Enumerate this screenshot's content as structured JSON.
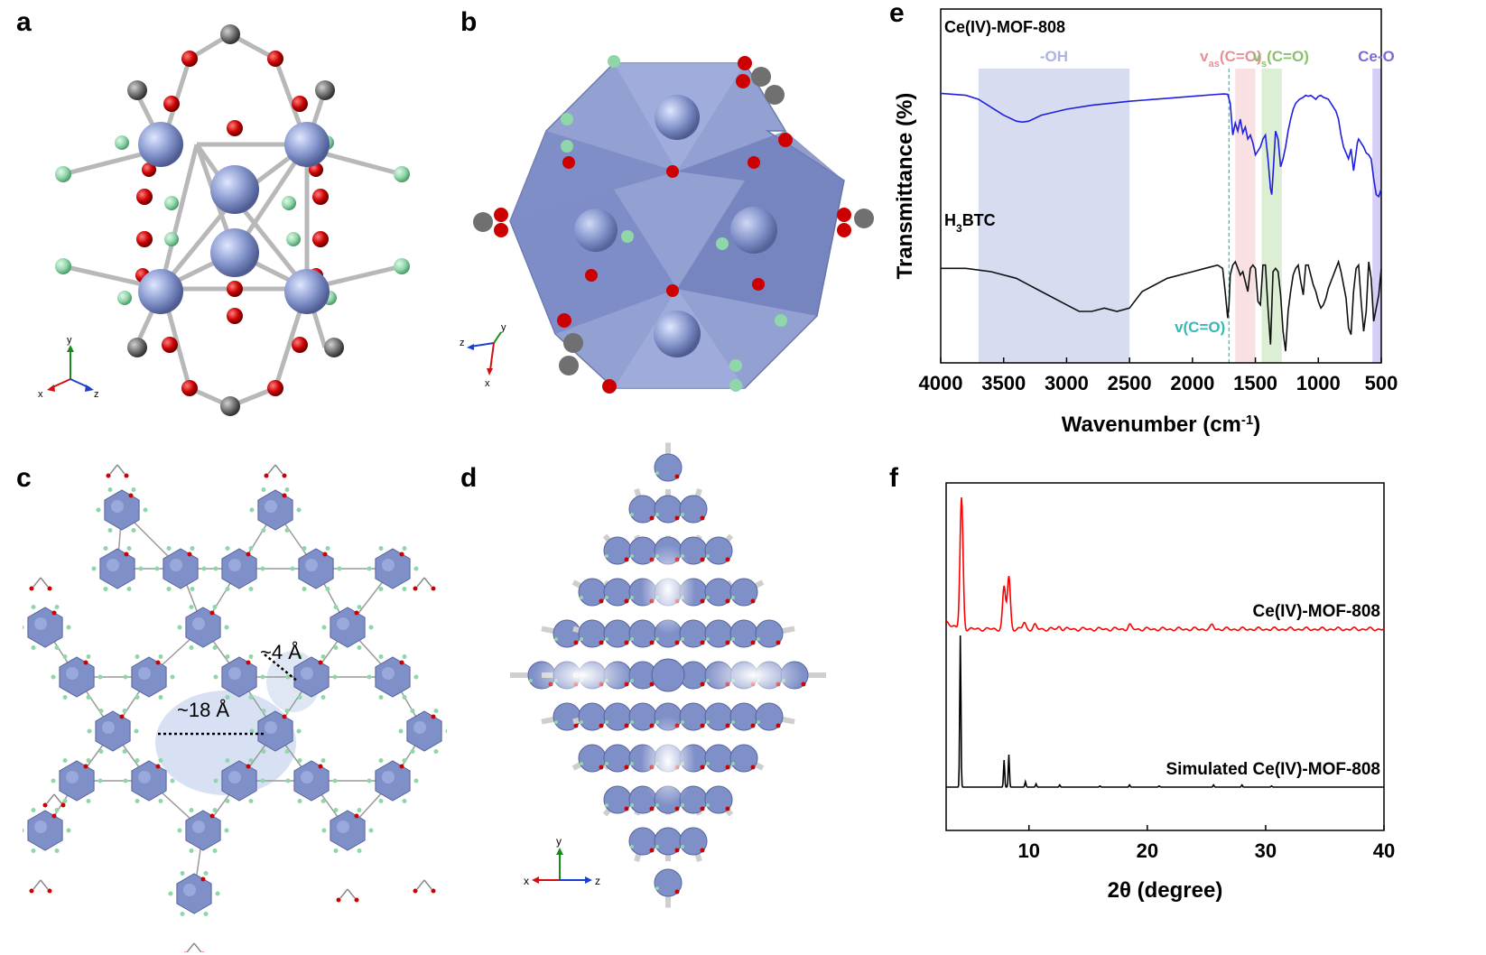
{
  "panels": {
    "a": {
      "label": "a",
      "axes": {
        "y": "y",
        "x": "x",
        "z": "z"
      }
    },
    "b": {
      "label": "b",
      "axes": {
        "y": "y",
        "z": "z",
        "x": "x"
      }
    },
    "c": {
      "label": "c",
      "pore_label": "~18 Å",
      "window_label": "~4 Å"
    },
    "d": {
      "label": "d",
      "axes": {
        "y": "y",
        "x": "x",
        "z": "z"
      }
    },
    "e": {
      "label": "e"
    },
    "f": {
      "label": "f"
    }
  },
  "atom_colors": {
    "Ce": "#8a9ad0",
    "O": "#cc0000",
    "C": "#707070",
    "H": "#8fd6a8",
    "polyhedron": "#7f8fc8"
  },
  "chart_data": [
    {
      "panel": "e",
      "type": "line",
      "xlabel": "Wavenumber (cm-1)",
      "ylabel": "Transmittance (%)",
      "xlim": [
        4000,
        500
      ],
      "x_reversed": true,
      "xticks": [
        4000,
        3500,
        3000,
        2500,
        2000,
        1500,
        1000,
        500
      ],
      "yticks": [],
      "series": [
        {
          "name": "Ce(IV)-MOF-808",
          "color": "#1f1fe0",
          "x": [
            4000,
            3800,
            3700,
            3600,
            3500,
            3400,
            3350,
            3300,
            3200,
            3000,
            2800,
            2500,
            2200,
            2000,
            1800,
            1750,
            1720,
            1700,
            1680,
            1660,
            1640,
            1620,
            1600,
            1580,
            1560,
            1540,
            1520,
            1500,
            1480,
            1460,
            1440,
            1420,
            1400,
            1380,
            1370,
            1360,
            1340,
            1320,
            1300,
            1280,
            1260,
            1240,
            1220,
            1200,
            1180,
            1150,
            1120,
            1100,
            1080,
            1060,
            1040,
            1020,
            1000,
            980,
            960,
            940,
            920,
            900,
            880,
            860,
            840,
            820,
            800,
            780,
            760,
            740,
            720,
            700,
            690,
            680,
            660,
            640,
            620,
            600,
            580,
            560,
            540,
            520,
            500
          ],
          "y": [
            93,
            92,
            90,
            86,
            82,
            79,
            78.5,
            79,
            82,
            85,
            87,
            89,
            90.5,
            91.5,
            92.5,
            92.7,
            92.5,
            88,
            72,
            78,
            74,
            80,
            73,
            76,
            70,
            72,
            68,
            62,
            64,
            66,
            70,
            72,
            60,
            45,
            42,
            52,
            74,
            70,
            56,
            60,
            66,
            74,
            80,
            85,
            88,
            90,
            91,
            92,
            91.5,
            92,
            91,
            90,
            91.5,
            92,
            91,
            90.5,
            90,
            88,
            86,
            84,
            80,
            72,
            66,
            63,
            60,
            65,
            54,
            63,
            68,
            70,
            68,
            66,
            63,
            62,
            60,
            50,
            42,
            41,
            45
          ]
        },
        {
          "name": "H3BTC",
          "color": "#111111",
          "x": [
            4000,
            3800,
            3600,
            3400,
            3200,
            3000,
            2900,
            2800,
            2700,
            2600,
            2500,
            2400,
            2200,
            2000,
            1900,
            1800,
            1760,
            1740,
            1720,
            1710,
            1700,
            1680,
            1660,
            1640,
            1620,
            1600,
            1580,
            1560,
            1540,
            1520,
            1500,
            1480,
            1460,
            1440,
            1420,
            1400,
            1380,
            1360,
            1340,
            1320,
            1300,
            1280,
            1260,
            1240,
            1220,
            1200,
            1180,
            1160,
            1140,
            1120,
            1100,
            1080,
            1060,
            1040,
            1020,
            1000,
            980,
            960,
            940,
            920,
            900,
            880,
            860,
            840,
            820,
            800,
            780,
            760,
            740,
            720,
            700,
            680,
            660,
            640,
            620,
            600,
            580,
            560,
            540,
            520,
            500
          ],
          "y": [
            52,
            52,
            51,
            49,
            45,
            41,
            39,
            39,
            40,
            39,
            40,
            45,
            49,
            51,
            52,
            53,
            52,
            45,
            37,
            41,
            50,
            53,
            54,
            52,
            50,
            51,
            48,
            45,
            52,
            53,
            52,
            42,
            41,
            53,
            53,
            40,
            29,
            51,
            52,
            51,
            44,
            33,
            27,
            39,
            45,
            50,
            52,
            53,
            48,
            44,
            53,
            53,
            50,
            47,
            45,
            42,
            40,
            41,
            43,
            46,
            48,
            50,
            52,
            54,
            51,
            47,
            43,
            34,
            32,
            45,
            52,
            53,
            42,
            33,
            39,
            54,
            49,
            36,
            40,
            44,
            52
          ]
        }
      ],
      "annotations": [
        {
          "text": "Ce(IV)-MOF-808",
          "kind": "series_label"
        },
        {
          "text": "H3BTC",
          "kind": "series_label"
        },
        {
          "text": "-OH",
          "band": [
            3700,
            2500
          ],
          "color": "#b7bfe6"
        },
        {
          "text": "vas(C=O)",
          "band": [
            1660,
            1500
          ],
          "color": "#f2c6cc"
        },
        {
          "text": "vs(C=O)",
          "band": [
            1450,
            1290
          ],
          "color": "#bfe0b0"
        },
        {
          "text": "Ce-O",
          "band": [
            570,
            500
          ],
          "color": "#b3a8f0"
        },
        {
          "text": "v(C=O)",
          "line_at": 1710,
          "color": "#35b8b8"
        }
      ]
    },
    {
      "panel": "f",
      "type": "line",
      "xlabel": "2θ (degree)",
      "ylabel": "",
      "xlim": [
        3,
        40
      ],
      "xticks": [
        10,
        20,
        30,
        40
      ],
      "yticks": [],
      "series": [
        {
          "name": "Ce(IV)-MOF-808",
          "color": "#ff0000",
          "peaks": [
            [
              4.3,
              100
            ],
            [
              7.9,
              32
            ],
            [
              8.3,
              40
            ],
            [
              9.6,
              5
            ],
            [
              10.5,
              3
            ],
            [
              12.6,
              2
            ],
            [
              18.5,
              3
            ],
            [
              25.5,
              3
            ]
          ]
        },
        {
          "name": "Simulated Ce(IV)-MOF-808",
          "color": "#000000",
          "peaks": [
            [
              4.2,
              140
            ],
            [
              7.9,
              25
            ],
            [
              8.3,
              30
            ],
            [
              9.7,
              5
            ],
            [
              10.6,
              3
            ],
            [
              12.6,
              2
            ],
            [
              16.0,
              1
            ],
            [
              18.5,
              2
            ],
            [
              21.0,
              1
            ],
            [
              25.6,
              2
            ],
            [
              28.0,
              2
            ],
            [
              30.5,
              1
            ]
          ]
        }
      ]
    }
  ]
}
